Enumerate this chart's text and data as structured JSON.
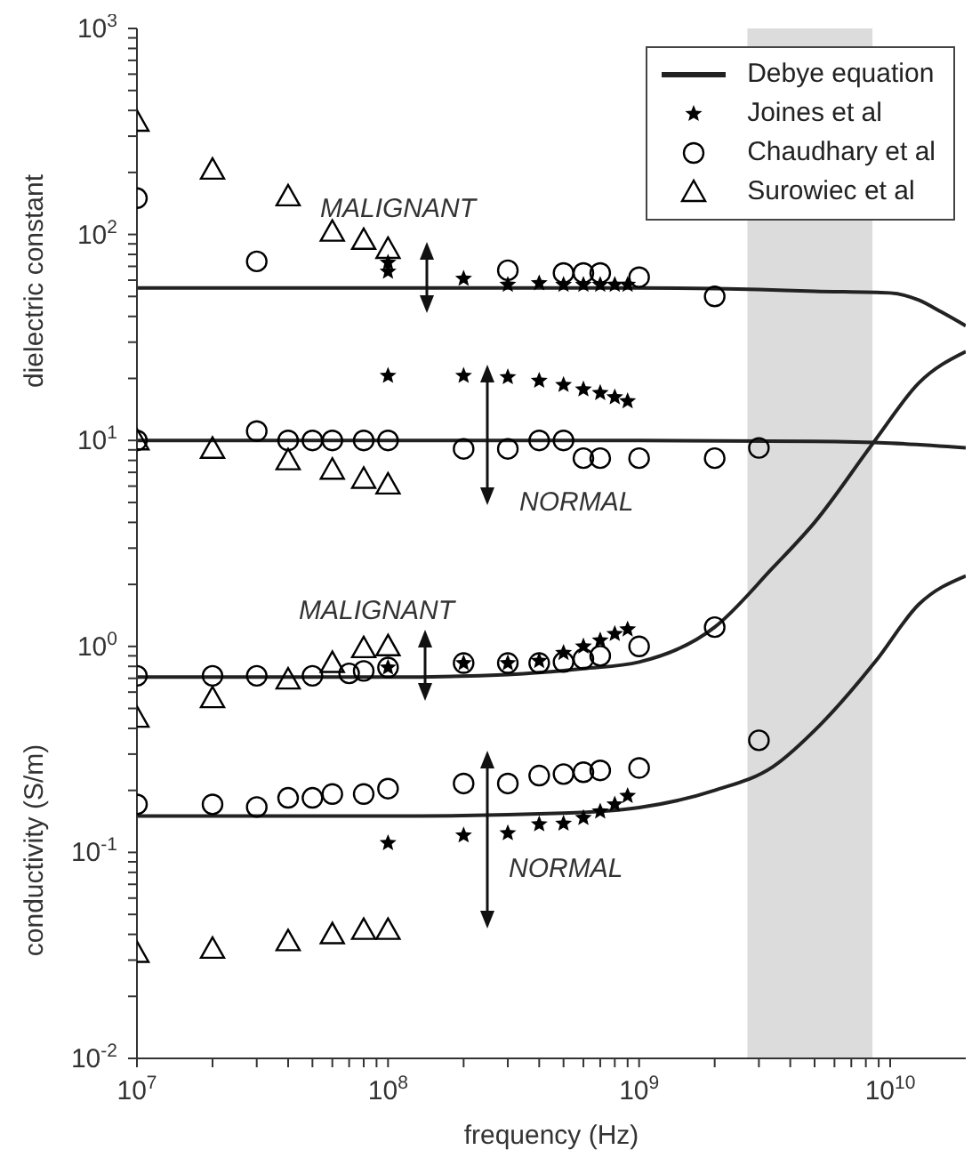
{
  "chart_data": {
    "type": "scatter",
    "xlabel": "frequency (Hz)",
    "ylabel": "dielectric constant",
    "log": "xy",
    "legend": "top right",
    "xlim": [
      10000000,
      20000000000
    ],
    "ylim": [
      0.01,
      1000
    ],
    "xticks": [
      {
        "value": 10000000,
        "label": "10$^{7}$"
      },
      {
        "value": 20000000,
        "label": null
      },
      {
        "value": 30000000,
        "label": null
      },
      {
        "value": 40000000,
        "label": null
      },
      {
        "value": 50000000,
        "label": null
      },
      {
        "value": 60000000,
        "label": null
      },
      {
        "value": 70000000,
        "label": null
      },
      {
        "value": 80000000,
        "label": null
      },
      {
        "value": 90000000,
        "label": null
      },
      {
        "value": 100000000,
        "label": "10$^{8}$"
      },
      {
        "value": 200000000,
        "label": null
      },
      {
        "value": 300000000,
        "label": null
      },
      {
        "value": 400000000,
        "label": null
      },
      {
        "value": 500000000,
        "label": null
      },
      {
        "value": 600000000,
        "label": null
      },
      {
        "value": 700000000,
        "label": null
      },
      {
        "value": 800000000,
        "label": null
      },
      {
        "value": 900000000,
        "label": null
      },
      {
        "value": 1000000000,
        "label": "10$^{9}$"
      },
      {
        "value": 2000000000,
        "label": null
      },
      {
        "value": 3000000000,
        "label": null
      },
      {
        "value": 4000000000,
        "label": null
      },
      {
        "value": 5000000000,
        "label": null
      },
      {
        "value": 6000000000,
        "label": null
      },
      {
        "value": 7000000000,
        "label": null
      },
      {
        "value": 8000000000,
        "label": null
      },
      {
        "value": 9000000000,
        "label": null
      },
      {
        "value": 10000000000,
        "label": "10$^{10}$"
      }
    ],
    "yticks": [
      {
        "value": 0.01,
        "label": "10$^{-2}$"
      },
      {
        "value": 0.02,
        "label": null
      },
      {
        "value": 0.03,
        "label": null
      },
      {
        "value": 0.04,
        "label": null
      },
      {
        "value": 0.05,
        "label": null
      },
      {
        "value": 0.06,
        "label": null
      },
      {
        "value": 0.07,
        "label": null
      },
      {
        "value": 0.08,
        "label": null
      },
      {
        "value": 0.09,
        "label": null
      },
      {
        "value": 0.1,
        "label": "10$^{-1}$"
      },
      {
        "value": 0.2,
        "label": null
      },
      {
        "value": 0.3,
        "label": null
      },
      {
        "value": 0.4,
        "label": null
      },
      {
        "value": 0.5,
        "label": null
      },
      {
        "value": 0.6,
        "label": null
      },
      {
        "value": 0.7,
        "label": null
      },
      {
        "value": 0.8,
        "label": null
      },
      {
        "value": 0.9,
        "label": null
      },
      {
        "value": 1,
        "label": "10$^{0}$"
      },
      {
        "value": 2,
        "label": null
      },
      {
        "value": 3,
        "label": null
      },
      {
        "value": 4,
        "label": null
      },
      {
        "value": 5,
        "label": null
      },
      {
        "value": 6,
        "label": null
      },
      {
        "value": 7,
        "label": null
      },
      {
        "value": 8,
        "label": null
      },
      {
        "value": 9,
        "label": null
      },
      {
        "value": 10,
        "label": "10$^{1}$"
      },
      {
        "value": 20,
        "label": null
      },
      {
        "value": 30,
        "label": null
      },
      {
        "value": 40,
        "label": null
      },
      {
        "value": 50,
        "label": null
      },
      {
        "value": 60,
        "label": null
      },
      {
        "value": 70,
        "label": null
      },
      {
        "value": 80,
        "label": null
      },
      {
        "value": 90,
        "label": null
      },
      {
        "value": 100,
        "label": "10$^{2}$"
      },
      {
        "value": 200,
        "label": null
      },
      {
        "value": 300,
        "label": null
      },
      {
        "value": 400,
        "label": null
      },
      {
        "value": 500,
        "label": null
      },
      {
        "value": 600,
        "label": null
      },
      {
        "value": 700,
        "label": null
      },
      {
        "value": 800,
        "label": null
      },
      {
        "value": 900,
        "label": null
      },
      {
        "value": 1000,
        "label": "10$^{3}$"
      }
    ],
    "bands": [
      {
        "axis": "x",
        "from": 2700000000,
        "to": 8500000000,
        "color": "#dcdcdc"
      }
    ],
    "annotations": [
      "MALIGNANT",
      "NORMAL",
      "MALIGNANT",
      "NORMAL",
      "conductivity (S/m)"
    ],
    "series": [
      {
        "type": "line",
        "name": "Debye equation",
        "color": "#222222",
        "marker": "none",
        "line_style": "solid",
        "x": [
          10000000,
          100000000,
          1000000000,
          3000000000,
          5000000000,
          10000000000,
          13000000000,
          16000000000,
          20000000000
        ],
        "values": [
          55,
          55,
          55,
          54,
          53,
          52,
          48,
          42,
          36
        ]
      },
      {
        "type": "line",
        "color": "#222222",
        "marker": "none",
        "line_style": "solid",
        "x": [
          10000000,
          1000000000,
          5000000000,
          10000000000,
          20000000000
        ],
        "values": [
          10,
          10,
          9.9,
          9.7,
          9.2
        ]
      },
      {
        "type": "line",
        "color": "#222222",
        "marker": "none",
        "line_style": "solid",
        "x": [
          10000000,
          100000000,
          300000000,
          600000000,
          1000000000,
          2000000000,
          3400000000,
          5000000000,
          8700000000,
          13000000000,
          20000000000
        ],
        "values": [
          0.71,
          0.71,
          0.73,
          0.78,
          0.84,
          1.24,
          2.4,
          4,
          10,
          19,
          27
        ]
      },
      {
        "type": "line",
        "color": "#222222",
        "marker": "none",
        "line_style": "solid",
        "x": [
          10000000,
          100000000,
          500000000,
          1000000000,
          2000000000,
          3400000000,
          5300000000,
          8700000000,
          13000000000,
          20000000000
        ],
        "values": [
          0.15,
          0.15,
          0.155,
          0.165,
          0.2,
          0.26,
          0.42,
          0.84,
          1.6,
          2.2
        ]
      },
      {
        "type": "scatter",
        "name": "Joines et al",
        "color": "#000000",
        "marker": "star",
        "x": [
          100000000,
          100000000,
          200000000,
          300000000,
          400000000,
          500000000,
          600000000,
          700000000,
          800000000,
          900000000,
          100000000,
          200000000,
          300000000,
          400000000,
          500000000,
          600000000,
          700000000,
          800000000,
          900000000,
          100000000,
          200000000,
          300000000,
          400000000,
          500000000,
          600000000,
          700000000,
          800000000,
          900000000,
          100000000,
          200000000,
          300000000,
          400000000,
          500000000,
          600000000,
          700000000,
          800000000,
          900000000
        ],
        "values": [
          73,
          66,
          61,
          57,
          58,
          57,
          57,
          57,
          57,
          57,
          20.6,
          20.6,
          20.3,
          19.5,
          18.6,
          17.7,
          17,
          16.2,
          15.5,
          0.79,
          0.83,
          0.83,
          0.85,
          0.93,
          1,
          1.07,
          1.15,
          1.21,
          0.111,
          0.121,
          0.124,
          0.137,
          0.138,
          0.147,
          0.158,
          0.171,
          0.188
        ]
      },
      {
        "type": "scatter",
        "name": "Chaudhary et al",
        "color": "#000000",
        "marker": "circle",
        "x": [
          10000000,
          30000000,
          300000000,
          500000000,
          600000000,
          700000000,
          1000000000,
          2000000000,
          10000000,
          30000000,
          40000000,
          50000000,
          60000000,
          80000000,
          100000000,
          200000000,
          300000000,
          400000000,
          500000000,
          600000000,
          700000000,
          1000000000,
          2000000000,
          3000000000,
          10000000,
          20000000,
          30000000,
          50000000,
          70000000,
          80000000,
          100000000,
          200000000,
          300000000,
          400000000,
          500000000,
          600000000,
          700000000,
          1000000000,
          2000000000,
          10000000,
          20000000,
          30000000,
          40000000,
          50000000,
          60000000,
          80000000,
          100000000,
          200000000,
          300000000,
          400000000,
          500000000,
          600000000,
          700000000,
          1000000000,
          3000000000
        ],
        "values": [
          150,
          74,
          67,
          65,
          65,
          65,
          62,
          50,
          10,
          11.1,
          10,
          10,
          10,
          10,
          10,
          9.1,
          9.1,
          10,
          10,
          8.2,
          8.2,
          8.2,
          8.2,
          9.2,
          0.72,
          0.72,
          0.72,
          0.72,
          0.74,
          0.76,
          0.79,
          0.83,
          0.83,
          0.83,
          0.84,
          0.87,
          0.9,
          1,
          1.24,
          0.171,
          0.171,
          0.166,
          0.184,
          0.184,
          0.192,
          0.192,
          0.204,
          0.216,
          0.216,
          0.236,
          0.24,
          0.245,
          0.25,
          0.257,
          0.35
        ]
      },
      {
        "type": "scatter",
        "name": "Surowiec et al",
        "color": "#000000",
        "marker": "triangle",
        "x": [
          10000000,
          20000000,
          40000000,
          60000000,
          80000000,
          100000000,
          10000000,
          20000000,
          40000000,
          60000000,
          80000000,
          100000000,
          10000000,
          20000000,
          40000000,
          60000000,
          80000000,
          100000000,
          10000000,
          20000000,
          40000000,
          60000000,
          80000000,
          100000000
        ],
        "values": [
          352,
          206,
          153,
          103,
          94,
          85,
          10,
          9.1,
          8,
          7.2,
          6.5,
          6.1,
          0.45,
          0.56,
          0.69,
          0.83,
          0.98,
          1,
          0.0325,
          0.034,
          0.037,
          0.04,
          0.042,
          0.042
        ]
      }
    ]
  }
}
